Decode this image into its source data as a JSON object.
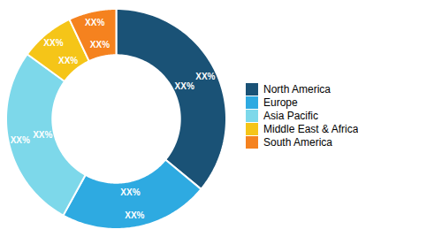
{
  "chart_data": {
    "type": "donut",
    "categories": [
      "North America",
      "Europe",
      "Asia Pacific",
      "Middle East & Africa",
      "South America"
    ],
    "values": [
      36,
      22,
      27,
      8,
      7
    ],
    "colors": [
      "#1a5276",
      "#2eaae1",
      "#7dd8ea",
      "#f5c518",
      "#f5821f"
    ],
    "data_labels": true,
    "value_labels": [
      "XX%",
      "XX%",
      "XX%",
      "XX%",
      "XX%"
    ],
    "legend": "right"
  }
}
